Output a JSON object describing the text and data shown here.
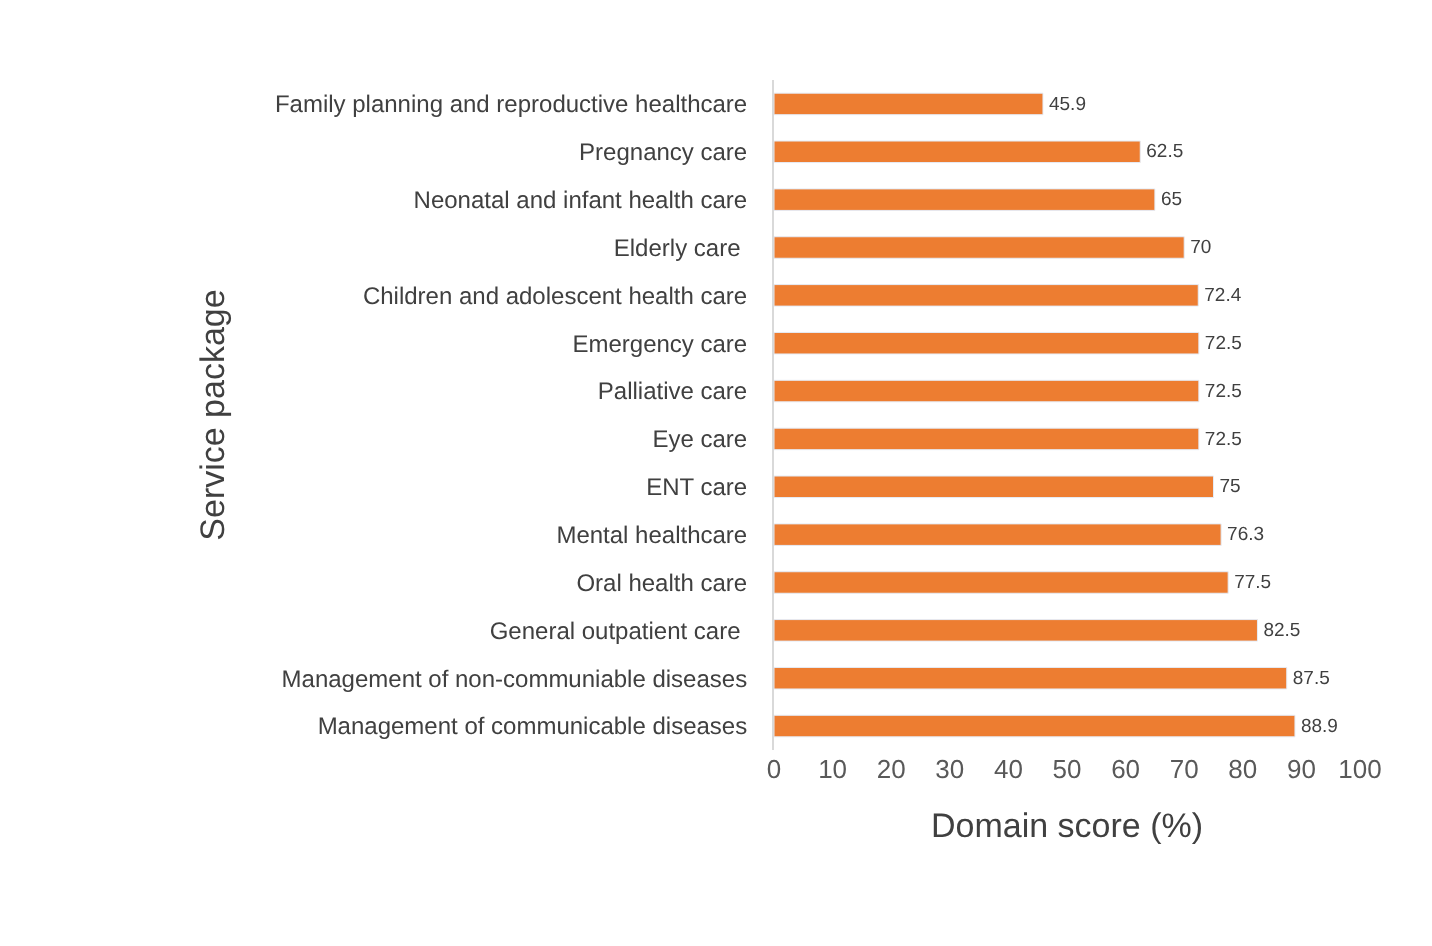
{
  "chart_data": {
    "type": "bar",
    "orientation": "horizontal",
    "xlabel": "Domain score (%)",
    "ylabel": "Service package",
    "categories": [
      "Family planning and reproductive healthcare",
      "Pregnancy care",
      "Neonatal and infant health care",
      "Elderly care ",
      "Children and adolescent health care",
      "Emergency care",
      "Palliative care",
      "Eye care",
      "ENT care",
      "Mental healthcare",
      "Oral health care",
      "General outpatient care ",
      "Management of non-communiable diseases",
      "Management of communicable diseases"
    ],
    "values": [
      45.9,
      62.5,
      65,
      70,
      72.4,
      72.5,
      72.5,
      72.5,
      75,
      76.3,
      77.5,
      82.5,
      87.5,
      88.9
    ],
    "color": "#ed7d31",
    "xlim": [
      0,
      100
    ],
    "xticks": [
      0,
      10,
      20,
      30,
      40,
      50,
      60,
      70,
      80,
      90,
      100
    ],
    "data_labels": true,
    "legend": false
  }
}
